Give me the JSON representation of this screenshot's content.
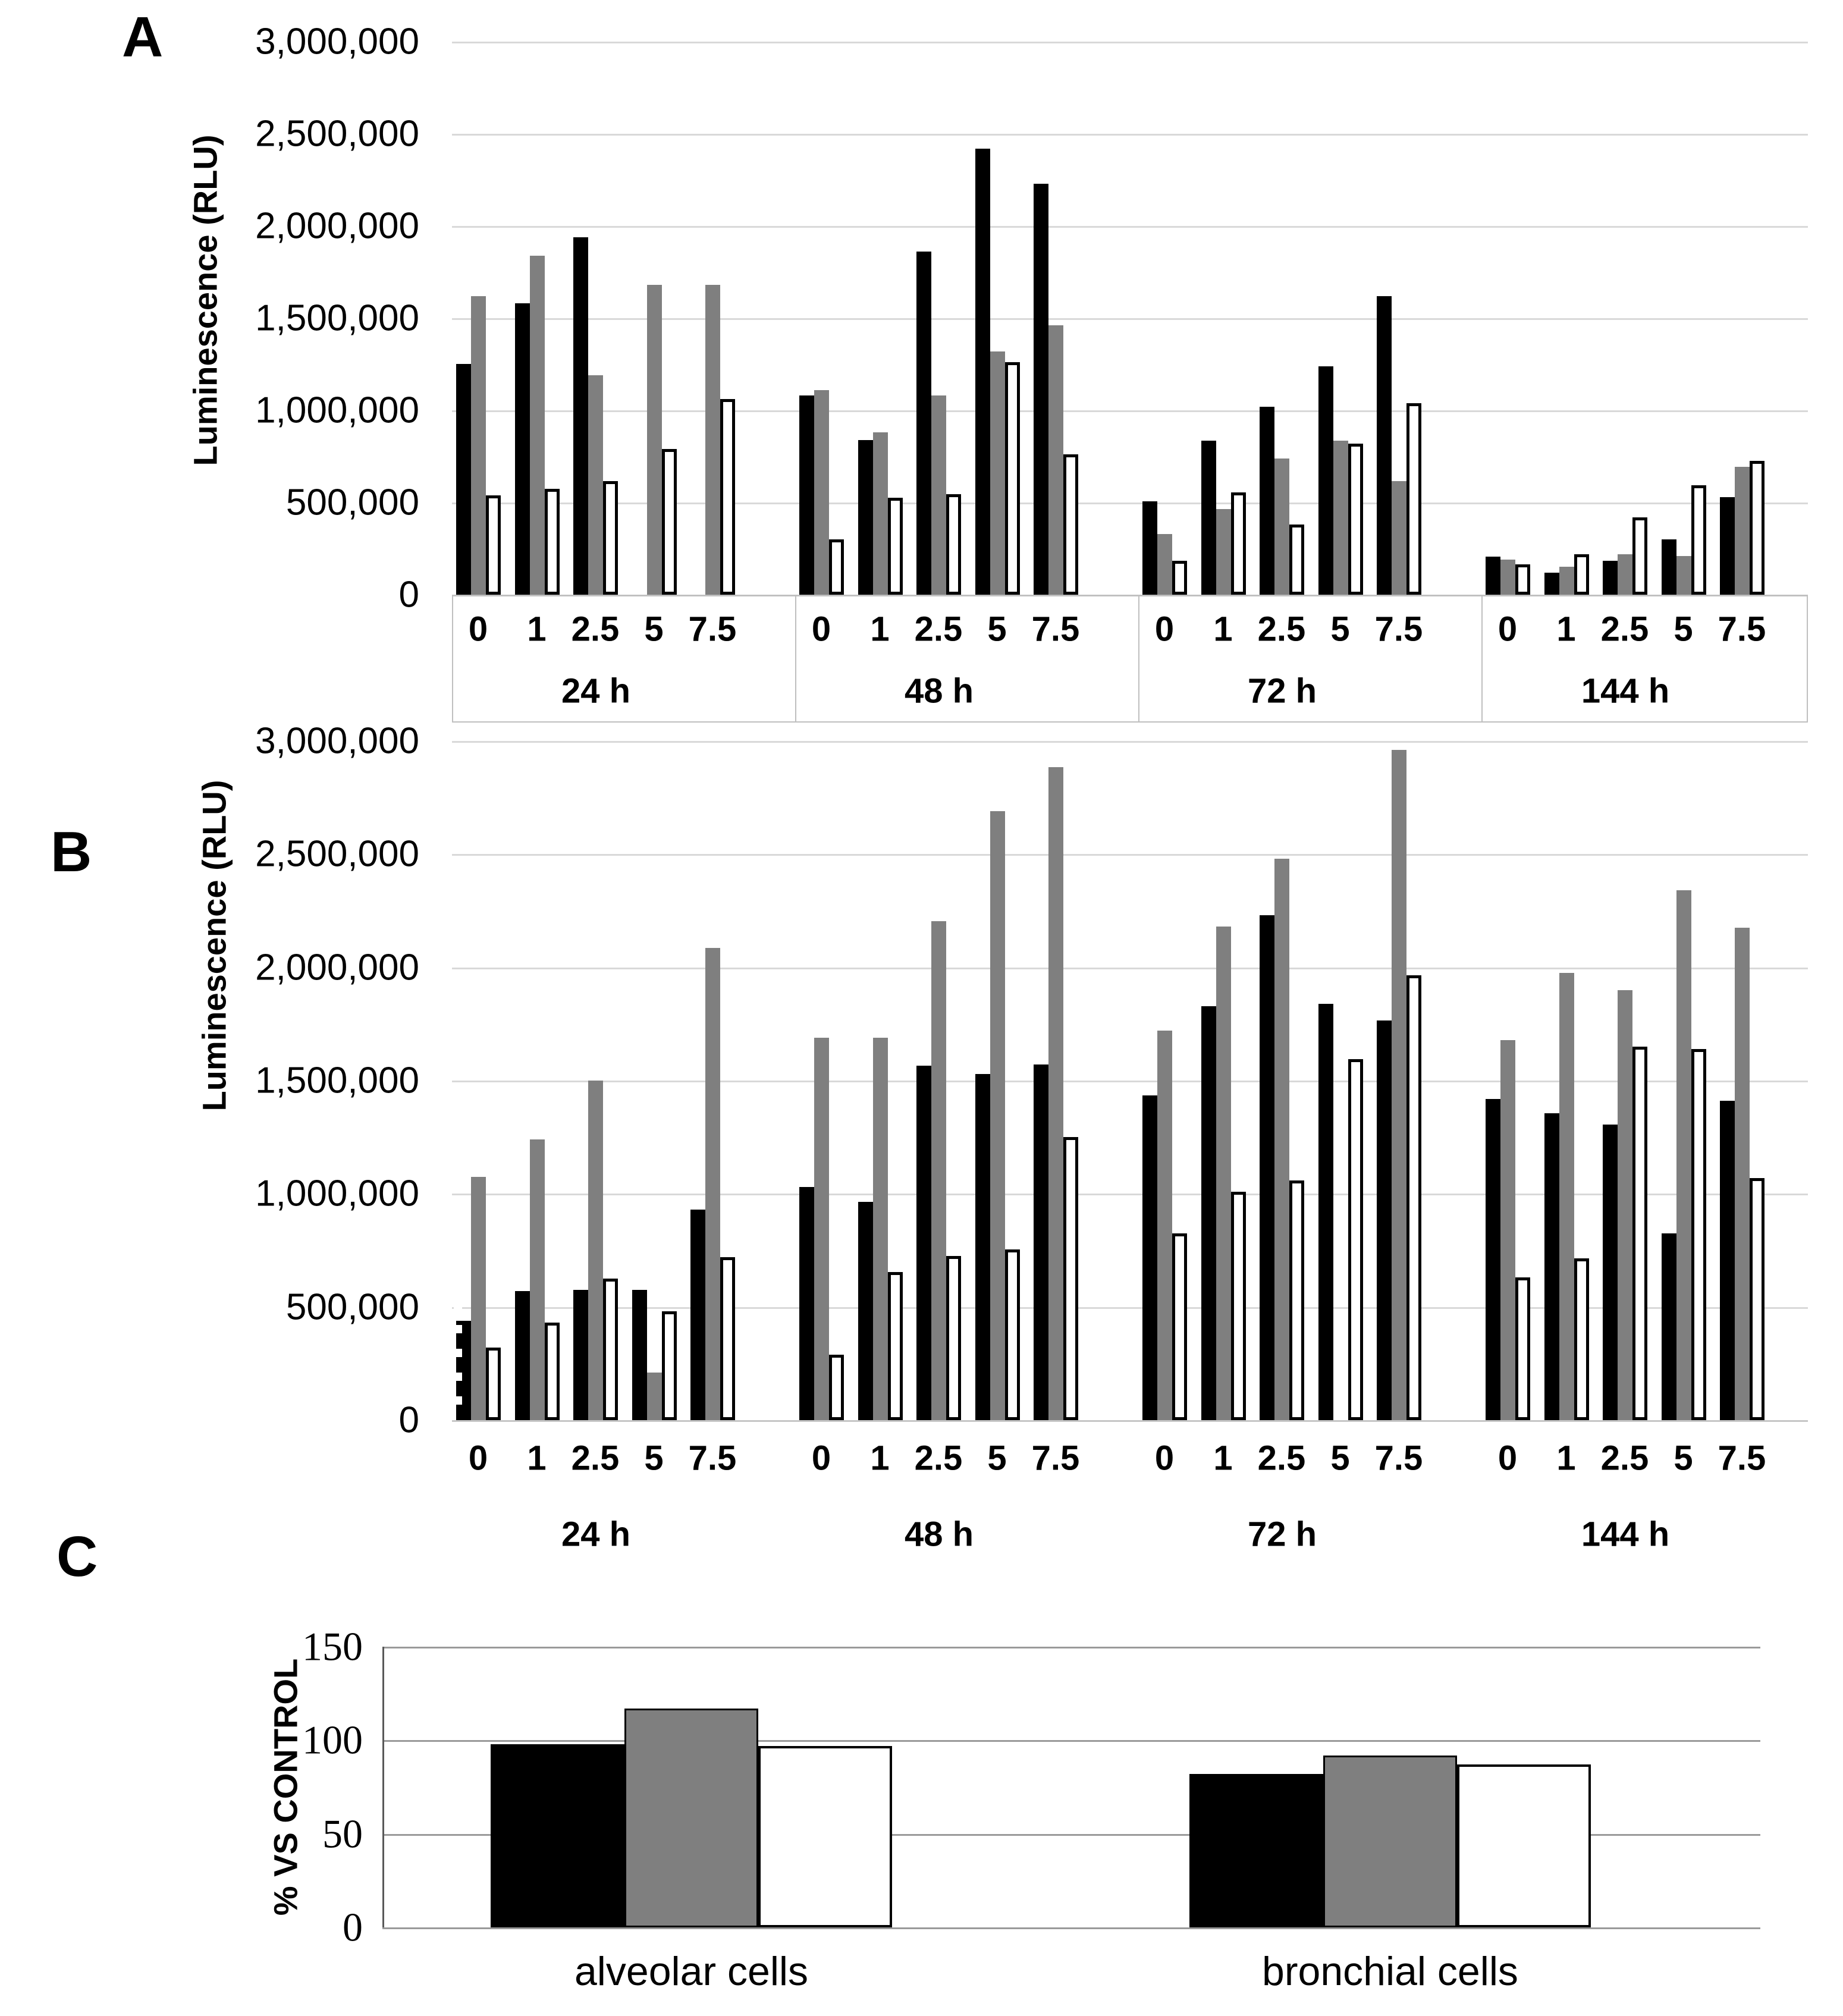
{
  "figure": {
    "background": "#ffffff"
  },
  "panels": {
    "a": {
      "letter": "A",
      "ylabel": "Luminescence (RLU)"
    },
    "b": {
      "letter": "B",
      "ylabel": "Luminescence (RLU)"
    },
    "c": {
      "letter": "C",
      "ylabel": "% VS CONTROL"
    }
  },
  "colors": {
    "black_series": "#000000",
    "grey_series": "#7f7f7f",
    "white_series": "#ffffff",
    "gridline_ab": "#d9d9d9",
    "gridline_c": "#9a9a9a",
    "axis_box_border": "#bfbfbf"
  },
  "chart_data": [
    {
      "id": "A",
      "type": "bar",
      "title": "",
      "xlabel": "",
      "ylabel": "Luminescence (RLU)",
      "ylim": [
        0,
        3000000
      ],
      "grid": true,
      "legend": "none",
      "ytick_values": [
        3000000,
        2500000,
        2000000,
        1500000,
        1000000,
        500000,
        0
      ],
      "ytick_labels": [
        "3,000,000",
        "2,500,000",
        "2,000,000",
        "1,500,000",
        "1,000,000",
        "500,000",
        "0"
      ],
      "group_labels": [
        "24 h",
        "48 h",
        "72 h",
        "144 h"
      ],
      "category_labels": [
        "0",
        "1",
        "2.5",
        "5",
        "7.5"
      ],
      "series": [
        {
          "name": "black",
          "color": "#000000",
          "values_by_group": [
            [
              1250000,
              1580000,
              1940000,
              0,
              0
            ],
            [
              1080000,
              840000,
              1860000,
              2420000,
              2230000
            ],
            [
              505000,
              835000,
              1020000,
              1240000,
              1620000
            ],
            [
              205000,
              120000,
              185000,
              300000,
              530000
            ]
          ]
        },
        {
          "name": "grey",
          "color": "#7f7f7f",
          "values_by_group": [
            [
              1620000,
              1840000,
              1190000,
              1680000,
              1680000
            ],
            [
              1110000,
              880000,
              1080000,
              1320000,
              1460000
            ],
            [
              330000,
              465000,
              740000,
              835000,
              615000
            ],
            [
              190000,
              150000,
              220000,
              210000,
              695000
            ]
          ]
        },
        {
          "name": "white",
          "color": "#ffffff",
          "values_by_group": [
            [
              540000,
              575000,
              615000,
              790000,
              1060000
            ],
            [
              300000,
              525000,
              545000,
              1260000,
              760000
            ],
            [
              185000,
              555000,
              380000,
              820000,
              1040000
            ],
            [
              165000,
              220000,
              420000,
              595000,
              725000
            ]
          ]
        }
      ]
    },
    {
      "id": "B",
      "type": "bar",
      "title": "",
      "xlabel": "",
      "ylabel": "Luminescence (RLU)",
      "ylim": [
        0,
        3000000
      ],
      "grid": true,
      "legend": "none",
      "ytick_values": [
        3000000,
        2500000,
        2000000,
        1500000,
        1000000,
        500000,
        0
      ],
      "ytick_labels": [
        "3,000,000",
        "2,500,000",
        "2,000,000",
        "1,500,000",
        "1,000,000",
        "500,000",
        "0"
      ],
      "group_labels": [
        "24 h",
        "48 h",
        "72 h",
        "144 h"
      ],
      "category_labels": [
        "0",
        "1",
        "2.5",
        "5",
        "7.5"
      ],
      "series": [
        {
          "name": "black",
          "color": "#000000",
          "values_by_group": [
            [
              440000,
              570000,
              575000,
              575000,
              930000
            ],
            [
              1030000,
              965000,
              1565000,
              1530000,
              1570000
            ],
            [
              1435000,
              1830000,
              2230000,
              1840000,
              1765000
            ],
            [
              1420000,
              1355000,
              1305000,
              825000,
              1410000
            ]
          ]
        },
        {
          "name": "grey",
          "color": "#7f7f7f",
          "values_by_group": [
            [
              1075000,
              1240000,
              1500000,
              210000,
              2085000
            ],
            [
              1690000,
              1690000,
              2205000,
              2690000,
              2885000
            ],
            [
              1720000,
              2180000,
              2480000,
              0,
              2960000
            ],
            [
              1680000,
              1975000,
              1900000,
              2340000,
              2175000
            ]
          ]
        },
        {
          "name": "white",
          "color": "#ffffff",
          "values_by_group": [
            [
              320000,
              430000,
              625000,
              480000,
              720000
            ],
            [
              290000,
              655000,
              725000,
              755000,
              1250000
            ],
            [
              825000,
              1010000,
              1060000,
              1595000,
              1965000
            ],
            [
              630000,
              715000,
              1650000,
              1640000,
              1070000
            ]
          ]
        }
      ]
    },
    {
      "id": "C",
      "type": "bar",
      "title": "",
      "xlabel": "",
      "ylabel": "% VS CONTROL",
      "ylim": [
        0,
        150
      ],
      "grid": true,
      "legend": "none",
      "ytick_values": [
        150,
        100,
        50,
        0
      ],
      "ytick_labels": [
        "150",
        "100",
        "50",
        "0"
      ],
      "categories": [
        "alveolar cells",
        "bronchial cells"
      ],
      "series": [
        {
          "name": "black",
          "color": "#000000",
          "values": [
            98,
            82
          ]
        },
        {
          "name": "grey",
          "color": "#7f7f7f",
          "values": [
            117,
            92
          ]
        },
        {
          "name": "white",
          "color": "#ffffff",
          "values": [
            97,
            87
          ]
        }
      ]
    }
  ]
}
